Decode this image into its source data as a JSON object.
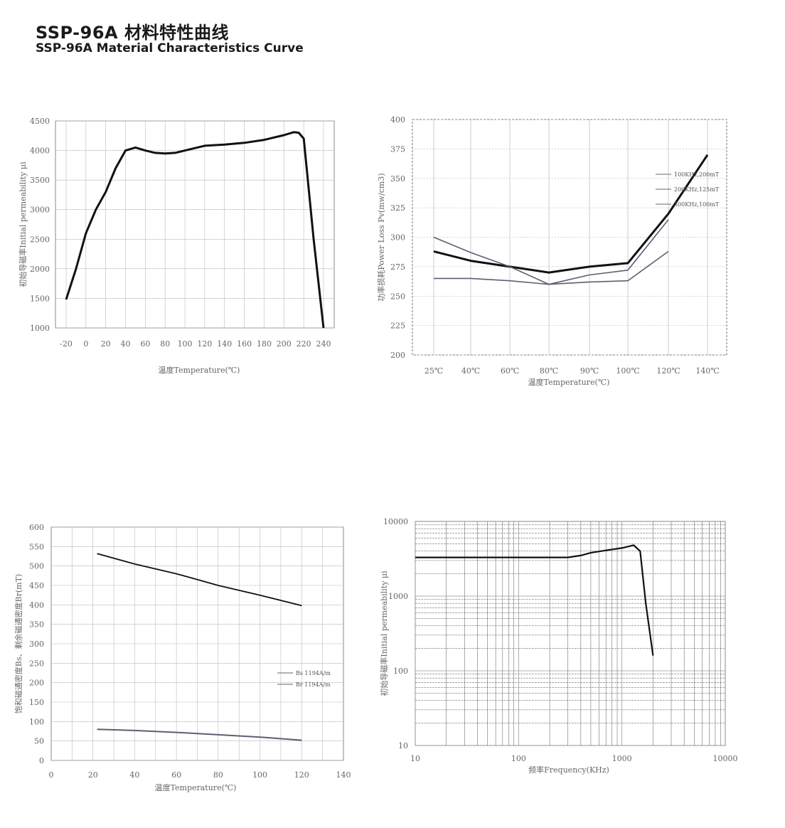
{
  "header": {
    "title_cn": "SSP-96A 材料特性曲线",
    "title_en": "SSP-96A Material Characteristics Curve"
  },
  "chart_data": [
    {
      "type": "line",
      "ylabel": "初始导磁率Initial permeability μi",
      "xlabel": "温度Temperature(℃)",
      "x_ticks": [
        "-20",
        "0",
        "20",
        "40",
        "60",
        "80",
        "100",
        "120",
        "140",
        "160",
        "180",
        "200",
        "220",
        "240"
      ],
      "ylim": [
        1000,
        4500
      ],
      "y_ticks": [
        "1000",
        "1500",
        "2000",
        "2500",
        "3000",
        "3500",
        "4000",
        "4500"
      ],
      "series": [
        {
          "x": [
            -20,
            -10,
            0,
            10,
            20,
            30,
            40,
            50,
            60,
            70,
            80,
            90,
            100,
            120,
            140,
            160,
            180,
            200,
            210,
            215,
            220,
            230,
            240
          ],
          "y": [
            1480,
            2000,
            2600,
            3000,
            3300,
            3700,
            4000,
            4050,
            4000,
            3960,
            3950,
            3960,
            4000,
            4080,
            4100,
            4130,
            4180,
            4260,
            4310,
            4300,
            4200,
            2500,
            1000
          ]
        }
      ],
      "grid": true
    },
    {
      "type": "line",
      "ylabel": "功率损耗Power Loss Pv(mw/cm3)",
      "xlabel": "温度Temperature(℃)",
      "categories": [
        "25℃",
        "40℃",
        "60℃",
        "80℃",
        "90℃",
        "100℃",
        "120℃",
        "140℃"
      ],
      "ylim": [
        200,
        400
      ],
      "y_ticks": [
        "200",
        "225",
        "250",
        "275",
        "300",
        "325",
        "350",
        "375",
        "400"
      ],
      "legend_position": "top-right",
      "series": [
        {
          "name": "100KHz,200mT",
          "values": [
            288,
            280,
            275,
            270,
            275,
            278,
            320,
            370
          ]
        },
        {
          "name": "200KHz,125mT",
          "values": [
            265,
            265,
            263,
            260,
            262,
            263,
            288,
            null
          ]
        },
        {
          "name": "300KHz,100mT",
          "values": [
            300,
            287,
            275,
            260,
            268,
            272,
            315,
            null
          ]
        }
      ],
      "grid": true
    },
    {
      "type": "line",
      "ylabel": "饱和磁通密度Bs、剩余磁通密度Br(mT)",
      "xlabel": "温度Temperature(℃)",
      "x_ticks": [
        "0",
        "20",
        "40",
        "60",
        "80",
        "100",
        "120",
        "140"
      ],
      "ylim": [
        0,
        600
      ],
      "y_ticks": [
        "0",
        "50",
        "100",
        "150",
        "200",
        "250",
        "300",
        "350",
        "400",
        "450",
        "500",
        "550",
        "600"
      ],
      "legend_position": "right",
      "series": [
        {
          "name": "Bs 1194A/m",
          "x": [
            22,
            40,
            60,
            70,
            80,
            100,
            120
          ],
          "y": [
            532,
            505,
            480,
            465,
            450,
            425,
            398
          ]
        },
        {
          "name": "Br 1194A/m",
          "x": [
            22,
            40,
            60,
            80,
            100,
            120
          ],
          "y": [
            80,
            77,
            72,
            66,
            60,
            52
          ]
        }
      ],
      "grid": true
    },
    {
      "type": "line",
      "ylabel": "初始导磁率Initial permeability μi",
      "xlabel": "频率Frequency(KHz)",
      "x_scale": "log",
      "y_scale": "log",
      "x_ticks": [
        "10",
        "100",
        "1000",
        "10000"
      ],
      "y_ticks": [
        "10",
        "100",
        "1000",
        "10000"
      ],
      "series": [
        {
          "x": [
            10,
            100,
            300,
            400,
            500,
            700,
            1000,
            1300,
            1500,
            1700,
            2000
          ],
          "y": [
            3300,
            3300,
            3300,
            3500,
            3800,
            4100,
            4400,
            4800,
            4000,
            800,
            160
          ]
        }
      ],
      "grid": true
    }
  ]
}
